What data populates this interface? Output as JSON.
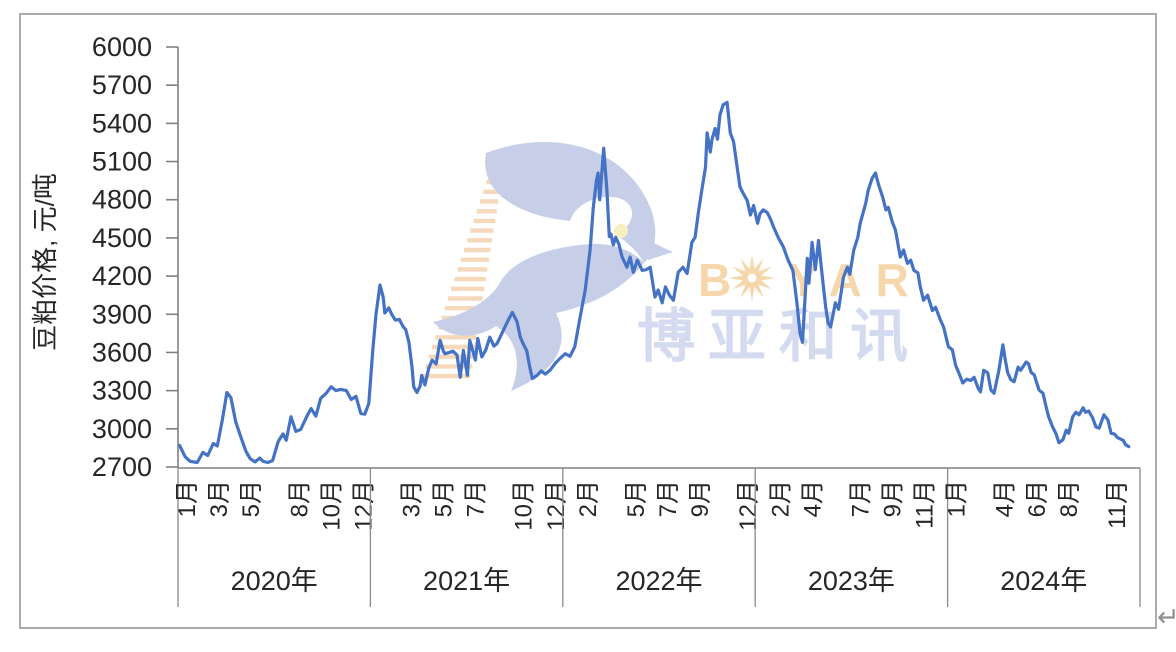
{
  "page": {
    "return_mark": "↵"
  },
  "watermark": {
    "brand_en_first": "B",
    "brand_en_rest": "YAR",
    "brand_cn": "博亚和讯",
    "color_orange": "#F5D7AB",
    "color_stripe": "#F6D8BA",
    "color_blue": "#C7CFE8",
    "color_cn": "#D4DAEF",
    "color_eye": "#F6EFC0"
  },
  "chart_data": {
    "type": "line",
    "title": "",
    "ylabel": "豆粕价格, 元/吨",
    "ylim": [
      2700,
      6000
    ],
    "ytick_step": 300,
    "yticks": [
      2700,
      3000,
      3300,
      3600,
      3900,
      4200,
      4500,
      4800,
      5100,
      5400,
      5700,
      6000
    ],
    "grid": false,
    "legend": "none",
    "x_axis": {
      "unit": "months_since_2020_01",
      "range_months": 60,
      "years": [
        {
          "label": "2020年",
          "months": [
            [
              1,
              "1月"
            ],
            [
              3,
              "3月"
            ],
            [
              5,
              "5月"
            ],
            [
              8,
              "8月"
            ],
            [
              10,
              "10月"
            ],
            [
              12,
              "12月"
            ]
          ]
        },
        {
          "label": "2021年",
          "months": [
            [
              3,
              "3月"
            ],
            [
              5,
              "5月"
            ],
            [
              7,
              "7月"
            ],
            [
              10,
              "10月"
            ],
            [
              12,
              "12月"
            ]
          ]
        },
        {
          "label": "2022年",
          "months": [
            [
              2,
              "2月"
            ],
            [
              5,
              "5月"
            ],
            [
              7,
              "7月"
            ],
            [
              9,
              "9月"
            ],
            [
              12,
              "12月"
            ]
          ]
        },
        {
          "label": "2023年",
          "months": [
            [
              2,
              "2月"
            ],
            [
              4,
              "4月"
            ],
            [
              7,
              "7月"
            ],
            [
              9,
              "9月"
            ],
            [
              11,
              "11月"
            ]
          ]
        },
        {
          "label": "2024年",
          "months": [
            [
              1,
              "1月"
            ],
            [
              4,
              "4月"
            ],
            [
              6,
              "6月"
            ],
            [
              8,
              "8月"
            ],
            [
              11,
              "11月"
            ]
          ]
        }
      ]
    },
    "series": [
      {
        "name": "豆粕价格",
        "unit": "元/吨",
        "color": "#4472C4",
        "points": [
          [
            0.1,
            2870
          ],
          [
            0.45,
            2780
          ],
          [
            0.75,
            2745
          ],
          [
            1.2,
            2735
          ],
          [
            1.55,
            2815
          ],
          [
            1.85,
            2790
          ],
          [
            2.2,
            2885
          ],
          [
            2.45,
            2865
          ],
          [
            2.75,
            3060
          ],
          [
            3.05,
            3285
          ],
          [
            3.3,
            3245
          ],
          [
            3.6,
            3055
          ],
          [
            3.95,
            2925
          ],
          [
            4.25,
            2820
          ],
          [
            4.5,
            2765
          ],
          [
            4.8,
            2740
          ],
          [
            5.1,
            2770
          ],
          [
            5.3,
            2745
          ],
          [
            5.6,
            2735
          ],
          [
            5.9,
            2750
          ],
          [
            6.25,
            2900
          ],
          [
            6.55,
            2960
          ],
          [
            6.75,
            2910
          ],
          [
            7.05,
            3095
          ],
          [
            7.35,
            2980
          ],
          [
            7.65,
            2995
          ],
          [
            8.0,
            3090
          ],
          [
            8.3,
            3160
          ],
          [
            8.6,
            3100
          ],
          [
            8.9,
            3240
          ],
          [
            9.25,
            3280
          ],
          [
            9.55,
            3330
          ],
          [
            9.85,
            3300
          ],
          [
            10.15,
            3310
          ],
          [
            10.5,
            3300
          ],
          [
            10.8,
            3230
          ],
          [
            11.1,
            3255
          ],
          [
            11.4,
            3120
          ],
          [
            11.65,
            3115
          ],
          [
            11.9,
            3200
          ],
          [
            12.15,
            3620
          ],
          [
            12.35,
            3900
          ],
          [
            12.6,
            4130
          ],
          [
            12.8,
            4035
          ],
          [
            12.9,
            3910
          ],
          [
            13.15,
            3950
          ],
          [
            13.35,
            3895
          ],
          [
            13.55,
            3855
          ],
          [
            13.8,
            3860
          ],
          [
            14.05,
            3800
          ],
          [
            14.2,
            3780
          ],
          [
            14.4,
            3680
          ],
          [
            14.6,
            3480
          ],
          [
            14.7,
            3330
          ],
          [
            14.9,
            3285
          ],
          [
            15.1,
            3335
          ],
          [
            15.2,
            3420
          ],
          [
            15.4,
            3345
          ],
          [
            15.65,
            3480
          ],
          [
            15.85,
            3540
          ],
          [
            16.1,
            3510
          ],
          [
            16.35,
            3695
          ],
          [
            16.55,
            3610
          ],
          [
            16.65,
            3590
          ],
          [
            16.9,
            3600
          ],
          [
            17.15,
            3610
          ],
          [
            17.4,
            3580
          ],
          [
            17.6,
            3405
          ],
          [
            17.8,
            3615
          ],
          [
            18.05,
            3420
          ],
          [
            18.2,
            3695
          ],
          [
            18.55,
            3540
          ],
          [
            18.7,
            3710
          ],
          [
            18.95,
            3565
          ],
          [
            19.2,
            3620
          ],
          [
            19.45,
            3720
          ],
          [
            19.7,
            3650
          ],
          [
            19.9,
            3670
          ],
          [
            20.2,
            3750
          ],
          [
            20.5,
            3830
          ],
          [
            20.85,
            3915
          ],
          [
            21.15,
            3840
          ],
          [
            21.35,
            3720
          ],
          [
            21.6,
            3650
          ],
          [
            21.75,
            3615
          ],
          [
            21.95,
            3480
          ],
          [
            22.1,
            3395
          ],
          [
            22.4,
            3420
          ],
          [
            22.65,
            3455
          ],
          [
            22.9,
            3430
          ],
          [
            23.2,
            3460
          ],
          [
            23.5,
            3510
          ],
          [
            23.8,
            3550
          ],
          [
            24.15,
            3590
          ],
          [
            24.45,
            3570
          ],
          [
            24.75,
            3645
          ],
          [
            25.05,
            3855
          ],
          [
            25.4,
            4090
          ],
          [
            25.7,
            4405
          ],
          [
            25.9,
            4740
          ],
          [
            26.1,
            4955
          ],
          [
            26.2,
            5010
          ],
          [
            26.3,
            4800
          ],
          [
            26.55,
            5205
          ],
          [
            26.75,
            4875
          ],
          [
            26.9,
            4510
          ],
          [
            27.0,
            4530
          ],
          [
            27.15,
            4445
          ],
          [
            27.3,
            4505
          ],
          [
            27.5,
            4450
          ],
          [
            27.7,
            4350
          ],
          [
            28.0,
            4270
          ],
          [
            28.2,
            4350
          ],
          [
            28.4,
            4230
          ],
          [
            28.65,
            4325
          ],
          [
            28.95,
            4245
          ],
          [
            29.2,
            4250
          ],
          [
            29.45,
            4270
          ],
          [
            29.75,
            4035
          ],
          [
            29.95,
            4090
          ],
          [
            30.2,
            3990
          ],
          [
            30.4,
            4115
          ],
          [
            30.65,
            4050
          ],
          [
            30.9,
            4010
          ],
          [
            31.2,
            4230
          ],
          [
            31.5,
            4270
          ],
          [
            31.75,
            4220
          ],
          [
            32.05,
            4465
          ],
          [
            32.25,
            4505
          ],
          [
            32.45,
            4695
          ],
          [
            32.7,
            4900
          ],
          [
            32.9,
            5055
          ],
          [
            33.0,
            5325
          ],
          [
            33.2,
            5175
          ],
          [
            33.3,
            5270
          ],
          [
            33.5,
            5360
          ],
          [
            33.65,
            5275
          ],
          [
            33.8,
            5465
          ],
          [
            34.0,
            5545
          ],
          [
            34.25,
            5565
          ],
          [
            34.45,
            5325
          ],
          [
            34.65,
            5255
          ],
          [
            34.9,
            5030
          ],
          [
            35.05,
            4900
          ],
          [
            35.25,
            4850
          ],
          [
            35.5,
            4795
          ],
          [
            35.7,
            4680
          ],
          [
            35.9,
            4755
          ],
          [
            36.15,
            4615
          ],
          [
            36.3,
            4690
          ],
          [
            36.5,
            4720
          ],
          [
            36.75,
            4700
          ],
          [
            36.95,
            4650
          ],
          [
            37.15,
            4585
          ],
          [
            37.45,
            4500
          ],
          [
            37.75,
            4430
          ],
          [
            38.05,
            4325
          ],
          [
            38.35,
            4245
          ],
          [
            38.6,
            3990
          ],
          [
            38.8,
            3750
          ],
          [
            38.95,
            3680
          ],
          [
            39.1,
            4010
          ],
          [
            39.25,
            4340
          ],
          [
            39.35,
            4145
          ],
          [
            39.55,
            4465
          ],
          [
            39.75,
            4250
          ],
          [
            39.95,
            4480
          ],
          [
            40.15,
            4240
          ],
          [
            40.4,
            3955
          ],
          [
            40.55,
            3830
          ],
          [
            40.7,
            3800
          ],
          [
            41.0,
            3990
          ],
          [
            41.2,
            3940
          ],
          [
            41.5,
            4190
          ],
          [
            41.75,
            4270
          ],
          [
            41.9,
            4215
          ],
          [
            42.15,
            4405
          ],
          [
            42.4,
            4505
          ],
          [
            42.55,
            4615
          ],
          [
            42.9,
            4775
          ],
          [
            43.05,
            4875
          ],
          [
            43.3,
            4970
          ],
          [
            43.5,
            5010
          ],
          [
            43.7,
            4915
          ],
          [
            43.95,
            4820
          ],
          [
            44.15,
            4720
          ],
          [
            44.3,
            4740
          ],
          [
            44.55,
            4625
          ],
          [
            44.75,
            4560
          ],
          [
            45.05,
            4350
          ],
          [
            45.25,
            4405
          ],
          [
            45.5,
            4300
          ],
          [
            45.7,
            4325
          ],
          [
            45.9,
            4245
          ],
          [
            46.15,
            4225
          ],
          [
            46.3,
            4115
          ],
          [
            46.5,
            4010
          ],
          [
            46.75,
            4050
          ],
          [
            47.05,
            3930
          ],
          [
            47.25,
            3955
          ],
          [
            47.55,
            3855
          ],
          [
            47.75,
            3800
          ],
          [
            48.05,
            3645
          ],
          [
            48.3,
            3620
          ],
          [
            48.5,
            3500
          ],
          [
            48.7,
            3440
          ],
          [
            48.95,
            3360
          ],
          [
            49.2,
            3390
          ],
          [
            49.45,
            3380
          ],
          [
            49.65,
            3405
          ],
          [
            49.9,
            3320
          ],
          [
            50.05,
            3290
          ],
          [
            50.25,
            3460
          ],
          [
            50.5,
            3440
          ],
          [
            50.7,
            3305
          ],
          [
            50.9,
            3280
          ],
          [
            51.2,
            3460
          ],
          [
            51.45,
            3660
          ],
          [
            51.6,
            3540
          ],
          [
            51.75,
            3440
          ],
          [
            51.95,
            3385
          ],
          [
            52.15,
            3370
          ],
          [
            52.4,
            3485
          ],
          [
            52.55,
            3460
          ],
          [
            52.9,
            3525
          ],
          [
            53.05,
            3510
          ],
          [
            53.2,
            3445
          ],
          [
            53.4,
            3425
          ],
          [
            53.7,
            3305
          ],
          [
            53.95,
            3280
          ],
          [
            54.15,
            3170
          ],
          [
            54.3,
            3095
          ],
          [
            54.55,
            3015
          ],
          [
            54.75,
            2965
          ],
          [
            54.95,
            2890
          ],
          [
            55.2,
            2915
          ],
          [
            55.4,
            2990
          ],
          [
            55.55,
            2965
          ],
          [
            55.8,
            3095
          ],
          [
            56.0,
            3130
          ],
          [
            56.2,
            3110
          ],
          [
            56.45,
            3165
          ],
          [
            56.6,
            3130
          ],
          [
            56.8,
            3140
          ],
          [
            57.05,
            3085
          ],
          [
            57.25,
            3015
          ],
          [
            57.45,
            3005
          ],
          [
            57.75,
            3110
          ],
          [
            58.0,
            3070
          ],
          [
            58.2,
            2965
          ],
          [
            58.4,
            2960
          ],
          [
            58.6,
            2930
          ],
          [
            58.95,
            2910
          ],
          [
            59.1,
            2875
          ],
          [
            59.3,
            2860
          ]
        ]
      }
    ]
  }
}
